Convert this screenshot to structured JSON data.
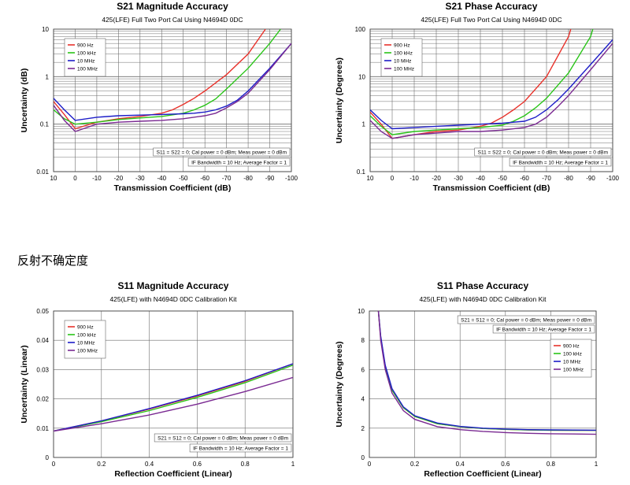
{
  "section_heading": "反射不确定度",
  "series_colors": [
    "#e8322b",
    "#29c418",
    "#1d1dc8",
    "#7a2a92"
  ],
  "chart_data": [
    {
      "type": "line",
      "title": "S21 Magnitude Accuracy",
      "subtitle": "425(LFE) Full Two Port Cal Using N4694D 0DC",
      "xlabel": "Transmission Coefficient (dB)",
      "ylabel": "Uncertainty (dB)",
      "xlim": [
        10,
        -100
      ],
      "ylim": [
        0.01,
        10
      ],
      "yscale": "log",
      "grid": true,
      "legend_position": "top-left",
      "xticks": [
        10,
        0,
        -10,
        -20,
        -30,
        -40,
        -50,
        -60,
        -70,
        -80,
        -90,
        -100
      ],
      "xtick_labels": [
        "10",
        "0",
        "-10",
        "-20",
        "-30",
        "-40",
        "-50",
        "-60",
        "-70",
        "-80",
        "-90",
        "-100"
      ],
      "yticks": [
        0.01,
        0.1,
        1,
        10
      ],
      "ytick_labels": [
        "0.01",
        "0.1",
        "1",
        "10"
      ],
      "annotations": [
        "S11 = S22 = 0; Cal power = 0 dBm; Meas power = 0 dBm",
        "IF Bandwidth = 10 Hz; Average Factor = 1"
      ],
      "series": [
        {
          "name": "900 Hz",
          "x": [
            10,
            5,
            0,
            -10,
            -20,
            -30,
            -40,
            -45,
            -50,
            -55,
            -60,
            -70,
            -80,
            -88
          ],
          "y": [
            0.3,
            0.16,
            0.08,
            0.11,
            0.13,
            0.145,
            0.17,
            0.2,
            0.26,
            0.35,
            0.5,
            1.1,
            3.0,
            10
          ]
        },
        {
          "name": "100 kHz",
          "x": [
            10,
            5,
            0,
            -10,
            -20,
            -30,
            -40,
            -50,
            -55,
            -60,
            -65,
            -70,
            -80,
            -90,
            -95
          ],
          "y": [
            0.2,
            0.13,
            0.1,
            0.11,
            0.125,
            0.135,
            0.145,
            0.17,
            0.2,
            0.25,
            0.34,
            0.55,
            1.5,
            5.0,
            10
          ]
        },
        {
          "name": "10 MHz",
          "x": [
            10,
            5,
            0,
            -10,
            -20,
            -30,
            -40,
            -50,
            -55,
            -60,
            -65,
            -70,
            -75,
            -80,
            -90,
            -100
          ],
          "y": [
            0.35,
            0.2,
            0.12,
            0.14,
            0.15,
            0.155,
            0.16,
            0.165,
            0.17,
            0.18,
            0.2,
            0.24,
            0.32,
            0.5,
            1.5,
            5
          ]
        },
        {
          "name": "100 MHz",
          "x": [
            10,
            5,
            0,
            -10,
            -20,
            -30,
            -40,
            -50,
            -60,
            -65,
            -70,
            -75,
            -80,
            -90,
            -100
          ],
          "y": [
            0.25,
            0.12,
            0.07,
            0.1,
            0.11,
            0.115,
            0.12,
            0.13,
            0.15,
            0.17,
            0.22,
            0.3,
            0.45,
            1.4,
            5
          ]
        }
      ]
    },
    {
      "type": "line",
      "title": "S21 Phase Accuracy",
      "subtitle": "425(LFE) Full Two Port Cal Using N4694D 0DC",
      "xlabel": "Transmission Coefficient (dB)",
      "ylabel": "Uncertainty (Degrees)",
      "xlim": [
        10,
        -100
      ],
      "ylim": [
        0.1,
        100
      ],
      "yscale": "log",
      "grid": true,
      "legend_position": "top-left",
      "xticks": [
        10,
        0,
        -10,
        -20,
        -30,
        -40,
        -50,
        -60,
        -70,
        -80,
        -90,
        -100
      ],
      "xtick_labels": [
        "10",
        "0",
        "-10",
        "-20",
        "-30",
        "-40",
        "-50",
        "-60",
        "-70",
        "-80",
        "-90",
        "-100"
      ],
      "yticks": [
        0.1,
        1,
        10,
        100
      ],
      "ytick_labels": [
        "0.1",
        "1",
        "10",
        "100"
      ],
      "annotations": [
        "S11 = S22 = 0; Cal power = 0 dBm; Meas power = 0 dBm",
        "IF Bandwidth = 10 Hz; Average Factor = 1"
      ],
      "series": [
        {
          "name": "900 Hz",
          "x": [
            10,
            5,
            0,
            -10,
            -20,
            -30,
            -40,
            -45,
            -50,
            -55,
            -60,
            -70,
            -80,
            -81
          ],
          "y": [
            1.8,
            1.0,
            0.5,
            0.6,
            0.7,
            0.75,
            0.9,
            1.05,
            1.4,
            2.0,
            3.0,
            10,
            70,
            100
          ]
        },
        {
          "name": "100 kHz",
          "x": [
            10,
            5,
            0,
            -10,
            -20,
            -30,
            -40,
            -50,
            -55,
            -60,
            -65,
            -70,
            -80,
            -90,
            -91
          ],
          "y": [
            1.5,
            0.9,
            0.6,
            0.7,
            0.75,
            0.8,
            0.85,
            0.95,
            1.15,
            1.5,
            2.2,
            3.5,
            12,
            70,
            100
          ]
        },
        {
          "name": "10 MHz",
          "x": [
            10,
            5,
            0,
            -10,
            -20,
            -30,
            -40,
            -50,
            -60,
            -65,
            -70,
            -75,
            -80,
            -90,
            -100
          ],
          "y": [
            2.0,
            1.2,
            0.8,
            0.85,
            0.9,
            0.95,
            1.0,
            1.05,
            1.15,
            1.4,
            2.0,
            3.2,
            5.5,
            18,
            60
          ]
        },
        {
          "name": "100 MHz",
          "x": [
            10,
            5,
            0,
            -10,
            -20,
            -30,
            -40,
            -50,
            -60,
            -65,
            -70,
            -75,
            -80,
            -90,
            -100
          ],
          "y": [
            1.2,
            0.7,
            0.5,
            0.6,
            0.65,
            0.7,
            0.7,
            0.75,
            0.85,
            1.0,
            1.4,
            2.3,
            4.0,
            14,
            50
          ]
        }
      ]
    },
    {
      "type": "line",
      "title": "S11 Magnitude Accuracy",
      "subtitle": "425(LFE) with N4694D 0DC Calibration Kit",
      "xlabel": "Reflection Coefficient (Linear)",
      "ylabel": "Uncertainty (Linear)",
      "xlim": [
        0,
        1
      ],
      "ylim": [
        0,
        0.05
      ],
      "yscale": "linear",
      "grid": true,
      "legend_position": "top-left",
      "xticks": [
        0,
        0.2,
        0.4,
        0.6,
        0.8,
        1
      ],
      "xtick_labels": [
        "0",
        "0.2",
        "0.4",
        "0.6",
        "0.8",
        "1"
      ],
      "yticks": [
        0,
        0.01,
        0.02,
        0.03,
        0.04,
        0.05
      ],
      "ytick_labels": [
        "0",
        "0.01",
        "0.02",
        "0.03",
        "0.04",
        "0.05"
      ],
      "annotations": [
        "S21 = S12 = 0; Cal power = 0 dBm; Meas power = 0 dBm",
        "IF Bandwidth = 10 Hz; Average Factor = 1"
      ],
      "series": [
        {
          "name": "900 Hz",
          "x": [
            0,
            0.2,
            0.4,
            0.6,
            0.8,
            1.0
          ],
          "y": [
            0.009,
            0.0125,
            0.0165,
            0.021,
            0.026,
            0.032
          ]
        },
        {
          "name": "100 kHz",
          "x": [
            0,
            0.2,
            0.4,
            0.6,
            0.8,
            1.0
          ],
          "y": [
            0.009,
            0.0122,
            0.016,
            0.0205,
            0.0255,
            0.0315
          ]
        },
        {
          "name": "10 MHz",
          "x": [
            0,
            0.2,
            0.4,
            0.6,
            0.8,
            1.0
          ],
          "y": [
            0.009,
            0.0125,
            0.0167,
            0.0212,
            0.0262,
            0.032
          ]
        },
        {
          "name": "100 MHz",
          "x": [
            0,
            0.2,
            0.4,
            0.6,
            0.8,
            1.0
          ],
          "y": [
            0.009,
            0.0115,
            0.0145,
            0.0182,
            0.0225,
            0.0273
          ]
        }
      ]
    },
    {
      "type": "line",
      "title": "S11 Phase Accuracy",
      "subtitle": "425(LFE) with N4694D 0DC Calibration Kit",
      "xlabel": "Reflection Coefficient (Linear)",
      "ylabel": "Uncertainty (Degrees)",
      "xlim": [
        0,
        1
      ],
      "ylim": [
        0,
        10
      ],
      "yscale": "linear",
      "grid": true,
      "legend_position": "right",
      "xticks": [
        0,
        0.2,
        0.4,
        0.6,
        0.8,
        1
      ],
      "xtick_labels": [
        "0",
        "0.2",
        "0.4",
        "0.6",
        "0.8",
        "1"
      ],
      "yticks": [
        0,
        2,
        4,
        6,
        8,
        10
      ],
      "ytick_labels": [
        "0",
        "2",
        "4",
        "6",
        "8",
        "10"
      ],
      "annotations": [
        "S21 = S12 = 0; Cal power = 0 dBm; Meas power = 0 dBm",
        "IF Bandwidth = 10 Hz; Average Factor = 1"
      ],
      "series": [
        {
          "name": "900 Hz",
          "x": [
            0.04,
            0.05,
            0.07,
            0.1,
            0.15,
            0.2,
            0.3,
            0.4,
            0.5,
            0.6,
            0.7,
            0.8,
            0.9,
            1.0
          ],
          "y": [
            10,
            8.2,
            6.2,
            4.6,
            3.4,
            2.8,
            2.3,
            2.1,
            1.98,
            1.92,
            1.88,
            1.86,
            1.85,
            1.85
          ]
        },
        {
          "name": "100 kHz",
          "x": [
            0.04,
            0.05,
            0.07,
            0.1,
            0.15,
            0.2,
            0.3,
            0.4,
            0.5,
            0.6,
            0.7,
            0.8,
            0.9,
            1.0
          ],
          "y": [
            10,
            8.2,
            6.2,
            4.6,
            3.4,
            2.8,
            2.3,
            2.1,
            1.98,
            1.92,
            1.88,
            1.86,
            1.85,
            1.85
          ]
        },
        {
          "name": "10 MHz",
          "x": [
            0.04,
            0.05,
            0.07,
            0.1,
            0.15,
            0.2,
            0.3,
            0.4,
            0.5,
            0.6,
            0.7,
            0.8,
            0.9,
            1.0
          ],
          "y": [
            10,
            8.3,
            6.3,
            4.7,
            3.45,
            2.85,
            2.35,
            2.12,
            2.0,
            1.94,
            1.9,
            1.88,
            1.87,
            1.86
          ]
        },
        {
          "name": "100 MHz",
          "x": [
            0.04,
            0.05,
            0.07,
            0.1,
            0.15,
            0.2,
            0.3,
            0.4,
            0.5,
            0.6,
            0.7,
            0.8,
            0.9,
            1.0
          ],
          "y": [
            10,
            8.0,
            6.0,
            4.4,
            3.2,
            2.6,
            2.1,
            1.9,
            1.78,
            1.7,
            1.65,
            1.62,
            1.6,
            1.58
          ]
        }
      ]
    }
  ]
}
